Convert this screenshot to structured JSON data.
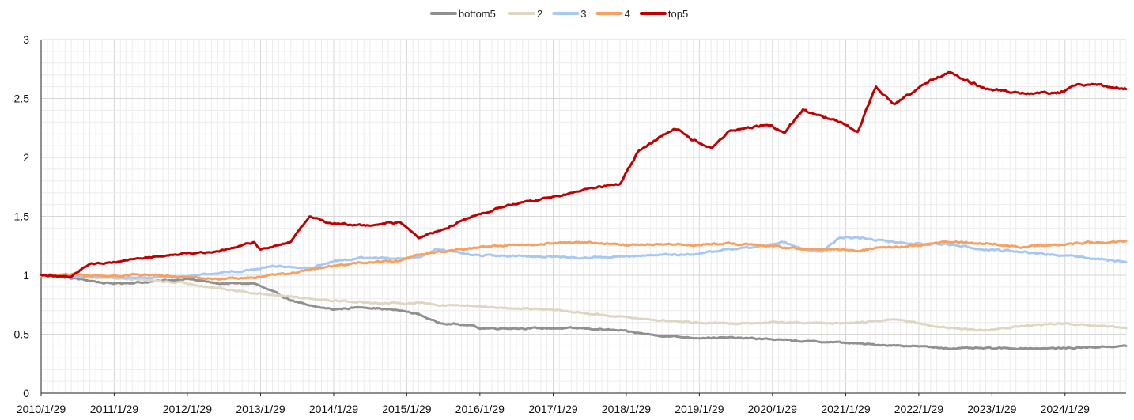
{
  "chart_data": {
    "type": "line",
    "title": "",
    "xlabel": "",
    "ylabel": "",
    "x_ticks": [
      "2010/1/29",
      "2011/1/29",
      "2012/1/29",
      "2013/1/29",
      "2014/1/29",
      "2015/1/29",
      "2016/1/29",
      "2017/1/29",
      "2018/1/29",
      "2019/1/29",
      "2020/1/29",
      "2021/1/29",
      "2022/1/29",
      "2023/1/29",
      "2024/1/29"
    ],
    "x_range": [
      "2010/1/29",
      "2024/11/29"
    ],
    "ylim": [
      0,
      3
    ],
    "y_ticks": [
      "0",
      "0.5",
      "1",
      "1.5",
      "2",
      "2.5",
      "3"
    ],
    "grid": true,
    "legend_position": "top-center",
    "series": [
      {
        "name": "bottom5",
        "color": "#909090",
        "x": [
          "2010/1/29",
          "2010/7/29",
          "2010/12/29",
          "2011/6/29",
          "2012/1/29",
          "2012/6/29",
          "2012/12/29",
          "2013/3/29",
          "2013/6/29",
          "2013/9/29",
          "2014/1/29",
          "2014/6/29",
          "2014/12/29",
          "2015/3/29",
          "2015/6/29",
          "2015/12/29",
          "2016/1/29",
          "2016/6/29",
          "2016/12/29",
          "2017/6/29",
          "2017/12/29",
          "2018/6/29",
          "2018/12/29",
          "2019/6/29",
          "2019/12/29",
          "2020/6/29",
          "2020/12/29",
          "2021/6/29",
          "2021/12/29",
          "2022/6/29",
          "2022/12/29",
          "2023/6/29",
          "2023/12/29",
          "2024/6/29",
          "2024/11/29"
        ],
        "y": [
          1.0,
          0.97,
          0.93,
          0.94,
          0.97,
          0.93,
          0.93,
          0.86,
          0.79,
          0.74,
          0.71,
          0.73,
          0.7,
          0.67,
          0.6,
          0.57,
          0.55,
          0.55,
          0.55,
          0.55,
          0.53,
          0.49,
          0.47,
          0.47,
          0.46,
          0.44,
          0.43,
          0.41,
          0.4,
          0.38,
          0.38,
          0.38,
          0.38,
          0.39,
          0.4
        ]
      },
      {
        "name": "2",
        "color": "#ded6c2",
        "x": [
          "2010/1/29",
          "2010/12/29",
          "2011/6/29",
          "2012/1/29",
          "2012/6/29",
          "2012/12/29",
          "2013/6/29",
          "2013/12/29",
          "2014/6/29",
          "2014/12/29",
          "2015/3/29",
          "2015/6/29",
          "2015/12/29",
          "2016/6/29",
          "2016/12/29",
          "2017/6/29",
          "2017/12/29",
          "2018/6/29",
          "2018/12/29",
          "2019/6/29",
          "2019/12/29",
          "2020/6/29",
          "2020/12/29",
          "2021/6/29",
          "2021/9/29",
          "2021/12/29",
          "2022/6/29",
          "2022/12/29",
          "2023/6/29",
          "2023/12/29",
          "2024/6/29",
          "2024/11/29"
        ],
        "y": [
          1.0,
          0.98,
          0.96,
          0.93,
          0.89,
          0.85,
          0.82,
          0.79,
          0.77,
          0.76,
          0.77,
          0.75,
          0.74,
          0.72,
          0.71,
          0.68,
          0.65,
          0.62,
          0.6,
          0.59,
          0.6,
          0.6,
          0.59,
          0.61,
          0.63,
          0.6,
          0.55,
          0.53,
          0.57,
          0.59,
          0.57,
          0.55
        ]
      },
      {
        "name": "3",
        "color": "#a8c8f4",
        "x": [
          "2010/1/29",
          "2010/12/29",
          "2011/6/29",
          "2012/1/29",
          "2012/6/29",
          "2012/12/29",
          "2013/3/29",
          "2013/9/29",
          "2014/1/29",
          "2014/6/29",
          "2014/12/29",
          "2015/3/29",
          "2015/6/29",
          "2015/12/29",
          "2016/6/29",
          "2016/12/29",
          "2017/6/29",
          "2017/12/29",
          "2018/6/29",
          "2018/12/29",
          "2019/6/29",
          "2019/12/29",
          "2020/3/29",
          "2020/6/29",
          "2020/9/29",
          "2020/12/29",
          "2021/3/29",
          "2021/6/29",
          "2021/9/29",
          "2021/12/29",
          "2022/6/29",
          "2022/12/29",
          "2023/6/29",
          "2023/12/29",
          "2024/6/29",
          "2024/11/29"
        ],
        "y": [
          1.0,
          0.98,
          0.98,
          0.99,
          1.02,
          1.05,
          1.08,
          1.06,
          1.12,
          1.15,
          1.14,
          1.15,
          1.22,
          1.17,
          1.16,
          1.16,
          1.15,
          1.16,
          1.17,
          1.18,
          1.22,
          1.25,
          1.28,
          1.22,
          1.2,
          1.32,
          1.32,
          1.3,
          1.28,
          1.27,
          1.26,
          1.22,
          1.2,
          1.17,
          1.14,
          1.11
        ]
      },
      {
        "name": "4",
        "color": "#f8a060",
        "x": [
          "2010/1/29",
          "2010/6/29",
          "2010/12/29",
          "2011/6/29",
          "2012/1/29",
          "2012/6/29",
          "2012/12/29",
          "2013/6/29",
          "2013/12/29",
          "2014/6/29",
          "2014/12/29",
          "2015/3/29",
          "2015/6/29",
          "2015/12/29",
          "2016/6/29",
          "2016/12/29",
          "2017/6/29",
          "2017/12/29",
          "2018/6/29",
          "2018/12/29",
          "2019/6/29",
          "2019/12/29",
          "2020/6/29",
          "2020/12/29",
          "2021/3/29",
          "2021/6/29",
          "2021/12/29",
          "2022/6/29",
          "2022/12/29",
          "2023/6/29",
          "2023/12/29",
          "2024/6/29",
          "2024/11/29"
        ],
        "y": [
          1.0,
          1.01,
          0.99,
          1.01,
          0.98,
          0.97,
          0.98,
          1.02,
          1.07,
          1.11,
          1.12,
          1.18,
          1.2,
          1.23,
          1.26,
          1.27,
          1.28,
          1.26,
          1.26,
          1.26,
          1.27,
          1.25,
          1.22,
          1.22,
          1.2,
          1.23,
          1.25,
          1.28,
          1.27,
          1.24,
          1.26,
          1.28,
          1.29
        ]
      },
      {
        "name": "top5",
        "color": "#c00000",
        "x": [
          "2010/1/29",
          "2010/6/29",
          "2010/9/29",
          "2010/12/29",
          "2011/6/29",
          "2011/12/29",
          "2012/6/29",
          "2012/12/29",
          "2013/1/29",
          "2013/6/29",
          "2013/9/29",
          "2013/12/29",
          "2014/6/29",
          "2014/12/29",
          "2015/3/29",
          "2015/6/29",
          "2015/12/29",
          "2016/6/29",
          "2016/12/29",
          "2017/6/29",
          "2017/12/29",
          "2018/3/29",
          "2018/6/29",
          "2018/9/29",
          "2018/12/29",
          "2019/3/29",
          "2019/6/29",
          "2019/12/29",
          "2020/3/29",
          "2020/6/29",
          "2020/12/29",
          "2021/3/29",
          "2021/6/29",
          "2021/9/29",
          "2021/12/29",
          "2022/3/29",
          "2022/6/29",
          "2022/12/29",
          "2023/6/29",
          "2023/12/29",
          "2024/3/29",
          "2024/6/29",
          "2024/11/29"
        ],
        "y": [
          1.0,
          0.99,
          1.1,
          1.1,
          1.15,
          1.18,
          1.2,
          1.28,
          1.22,
          1.28,
          1.5,
          1.45,
          1.42,
          1.45,
          1.32,
          1.37,
          1.5,
          1.6,
          1.65,
          1.72,
          1.78,
          2.05,
          2.15,
          2.25,
          2.15,
          2.08,
          2.22,
          2.28,
          2.22,
          2.4,
          2.3,
          2.22,
          2.6,
          2.45,
          2.55,
          2.65,
          2.72,
          2.58,
          2.55,
          2.55,
          2.62,
          2.62,
          2.58
        ]
      }
    ]
  }
}
